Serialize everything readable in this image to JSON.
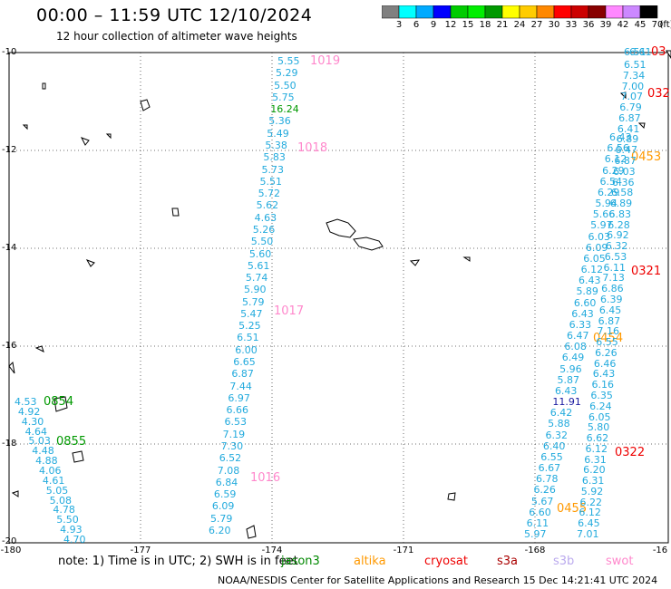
{
  "header": {
    "title": "00:00 – 11:59 UTC 12/10/2024",
    "subtitle": "12 hour collection of altimeter wave heights"
  },
  "colorbar": {
    "labels": [
      "3",
      "6",
      "9",
      "12",
      "15",
      "18",
      "21",
      "24",
      "27",
      "30",
      "33",
      "36",
      "39",
      "42",
      "45",
      "70"
    ],
    "unit": "(ft)",
    "colors": [
      "#808080",
      "#00ffff",
      "#00aaff",
      "#0000ff",
      "#00cc00",
      "#00ee00",
      "#009900",
      "#ffff00",
      "#ffcc00",
      "#ff8800",
      "#ff0000",
      "#cc0000",
      "#880000",
      "#ff88ff",
      "#cc88ff",
      "#000000"
    ]
  },
  "axes": {
    "y_labels": [
      "-10",
      "-12",
      "-14",
      "-16",
      "-18",
      "-20"
    ],
    "x_labels": [
      "-180",
      "-177",
      "-174",
      "-171",
      "-168",
      "-16"
    ]
  },
  "passes": {
    "track_a": {
      "values": [
        "5.55",
        "5.29",
        "5.50",
        "5.75",
        "16.24",
        "5.36",
        "5.49",
        "5.38",
        "5.83",
        "5.73",
        "5.51",
        "5.72",
        "5.62",
        "4.63",
        "5.26",
        "5.50",
        "5.60",
        "5.61",
        "5.74",
        "5.90",
        "5.79",
        "5.47",
        "5.25",
        "6.51",
        "6.00",
        "6.65",
        "6.87",
        "7.44",
        "6.97",
        "6.66",
        "6.53",
        "7.19",
        "7.30",
        "6.52",
        "7.08",
        "6.84",
        "6.59",
        "6.09",
        "5.79",
        "6.20"
      ],
      "labels": [
        "1019",
        "1018",
        "1017",
        "1016"
      ]
    },
    "track_b": {
      "values": [
        "4.53",
        "4.92",
        "4.30",
        "4.64",
        "5.03",
        "4.48",
        "4.88",
        "4.06",
        "4.61",
        "5.05",
        "5.08",
        "4.78",
        "5.50",
        "4.93",
        "4.70"
      ],
      "labels": [
        "0854",
        "0855"
      ]
    },
    "track_c": {
      "values": [
        "6.43",
        "6.56",
        "6.12",
        "6.29",
        "6.54",
        "6.29",
        "5.94",
        "5.66",
        "5.97",
        "6.03",
        "6.09",
        "6.05",
        "6.12",
        "6.43",
        "5.89",
        "6.60",
        "6.43",
        "6.33",
        "6.47",
        "6.08",
        "6.49",
        "5.96",
        "5.87",
        "6.43",
        "11.91",
        "6.42",
        "5.88",
        "6.32",
        "6.40",
        "6.55",
        "6.67",
        "6.78",
        "6.26",
        "5.67",
        "6.60",
        "6.11",
        "5.97"
      ],
      "labels": [
        "0453",
        "0454",
        "0455"
      ]
    },
    "track_d": {
      "values": [
        "6.51",
        "7.34",
        "7.00",
        "7.07",
        "6.79",
        "6.87",
        "6.41",
        "6.89",
        "6.47",
        "6.87",
        "6.03",
        "6.36",
        "6.58",
        "6.89",
        "6.83",
        "6.28",
        "6.92",
        "6.32",
        "6.53",
        "6.11",
        "7.13",
        "6.86",
        "6.39",
        "6.45",
        "6.87",
        "7.16",
        "6.55",
        "6.26",
        "6.46",
        "6.43",
        "6.16",
        "6.35",
        "6.24",
        "6.05",
        "5.80",
        "6.62",
        "6.12",
        "6.31",
        "6.20",
        "6.31",
        "5.92",
        "6.22",
        "6.12",
        "6.45",
        "7.01"
      ],
      "labels": [
        "03",
        "032",
        "0321",
        "0322"
      ],
      "top_labels": [
        "6.51",
        "6.61"
      ]
    }
  },
  "note": "note: 1) Time is in UTC; 2) SWH is in feet",
  "legend": [
    {
      "name": "jason3",
      "color": "#008800"
    },
    {
      "name": "altika",
      "color": "#ff9900"
    },
    {
      "name": "cryosat",
      "color": "#ee0000"
    },
    {
      "name": "s3a",
      "color": "#aa0000"
    },
    {
      "name": "s3b",
      "color": "#bbaaee"
    },
    {
      "name": "swot",
      "color": "#ff88cc"
    }
  ],
  "footer": "NOAA/NESDIS Center for Satellite Applications and Research   15 Dec 14:21:41 UTC 2024"
}
